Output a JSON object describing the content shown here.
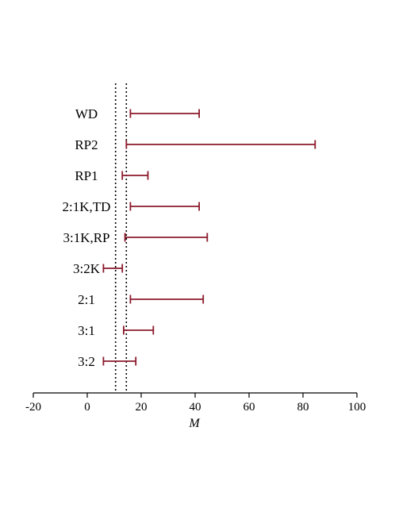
{
  "chart_data": {
    "type": "errorbar",
    "title": "",
    "xlabel": "M",
    "ylabel": "",
    "xlim": [
      -20,
      100
    ],
    "x_ticks": [
      -20,
      0,
      20,
      40,
      60,
      80,
      100
    ],
    "x_tick_labels": [
      "-20",
      "0",
      "20",
      "40",
      "60",
      "80",
      "100"
    ],
    "grid": false,
    "legend": "none",
    "categories": [
      "WD",
      "RP2",
      "RP1",
      "2:1K,TD",
      "3:1K,RP",
      "3:2K",
      "2:1",
      "3:1",
      "3:2"
    ],
    "intervals": [
      {
        "label": "WD",
        "low": 16,
        "high": 41.5
      },
      {
        "label": "RP2",
        "low": 14.5,
        "high": 84.5
      },
      {
        "label": "RP1",
        "low": 13,
        "high": 22.5
      },
      {
        "label": "2:1K,TD",
        "low": 16,
        "high": 41.5
      },
      {
        "label": "3:1K,RP",
        "low": 14,
        "high": 44.5
      },
      {
        "label": "3:2K",
        "low": 6,
        "high": 13
      },
      {
        "label": "2:1",
        "low": 16,
        "high": 43
      },
      {
        "label": "3:1",
        "low": 13.5,
        "high": 24.5
      },
      {
        "label": "3:2",
        "low": 6,
        "high": 18
      }
    ],
    "reference_lines": [
      10.5,
      14.5
    ],
    "colors": {
      "bar": "#8b1a2b",
      "reference": "#000000",
      "axis": "#000000"
    }
  }
}
